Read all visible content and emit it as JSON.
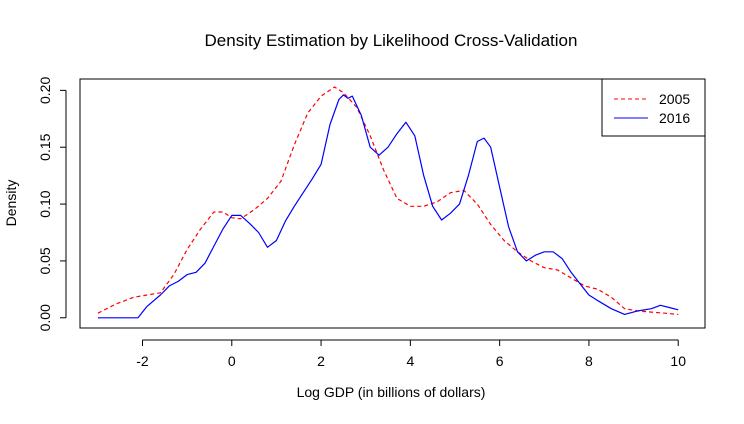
{
  "chart_data": {
    "type": "line",
    "title": "Density Estimation by Likelihood Cross-Validation",
    "xlabel": "Log GDP (in billions of dollars)",
    "ylabel": "Density",
    "xlim": [
      -3.4,
      10.6
    ],
    "ylim": [
      -0.009,
      0.21
    ],
    "x_ticks": [
      -2,
      0,
      2,
      4,
      6,
      8,
      10
    ],
    "y_ticks": [
      0.0,
      0.05,
      0.1,
      0.15,
      0.2
    ],
    "x_tick_labels": [
      "-2",
      "0",
      "2",
      "4",
      "6",
      "8",
      "10"
    ],
    "y_tick_labels": [
      "0.00",
      "0.05",
      "0.10",
      "0.15",
      "0.20"
    ],
    "grid": false,
    "legend_position": "top-right",
    "series": [
      {
        "name": "2005",
        "color": "#ff0000",
        "dash": "dashed",
        "x": [
          -3.0,
          -2.6,
          -2.2,
          -1.9,
          -1.6,
          -1.3,
          -1.0,
          -0.7,
          -0.4,
          -0.2,
          0.0,
          0.2,
          0.5,
          0.8,
          1.1,
          1.4,
          1.7,
          2.0,
          2.3,
          2.5,
          2.8,
          3.1,
          3.4,
          3.7,
          4.0,
          4.3,
          4.6,
          4.9,
          5.2,
          5.5,
          5.8,
          6.1,
          6.4,
          6.7,
          7.0,
          7.3,
          7.6,
          7.9,
          8.2,
          8.5,
          8.8,
          9.1,
          9.4,
          9.7,
          10.0
        ],
        "y": [
          0.004,
          0.012,
          0.018,
          0.02,
          0.022,
          0.038,
          0.06,
          0.078,
          0.093,
          0.093,
          0.088,
          0.087,
          0.095,
          0.105,
          0.12,
          0.152,
          0.18,
          0.195,
          0.203,
          0.198,
          0.185,
          0.16,
          0.13,
          0.105,
          0.098,
          0.098,
          0.102,
          0.11,
          0.112,
          0.1,
          0.082,
          0.068,
          0.058,
          0.05,
          0.044,
          0.042,
          0.035,
          0.028,
          0.025,
          0.018,
          0.008,
          0.006,
          0.005,
          0.004,
          0.003
        ]
      },
      {
        "name": "2016",
        "color": "#0000ff",
        "dash": "solid",
        "x": [
          -3.0,
          -2.5,
          -2.1,
          -1.9,
          -1.6,
          -1.4,
          -1.2,
          -1.0,
          -0.8,
          -0.6,
          -0.4,
          -0.2,
          0.0,
          0.2,
          0.4,
          0.6,
          0.8,
          1.0,
          1.2,
          1.4,
          1.6,
          1.8,
          2.0,
          2.2,
          2.4,
          2.5,
          2.6,
          2.7,
          2.9,
          3.1,
          3.3,
          3.5,
          3.7,
          3.9,
          4.1,
          4.3,
          4.5,
          4.7,
          4.9,
          5.1,
          5.3,
          5.5,
          5.65,
          5.8,
          6.0,
          6.2,
          6.4,
          6.6,
          6.8,
          7.0,
          7.2,
          7.4,
          7.6,
          7.8,
          8.0,
          8.2,
          8.5,
          8.8,
          9.1,
          9.4,
          9.6,
          9.8,
          10.0
        ],
        "y": [
          0.0,
          0.0,
          0.0,
          0.01,
          0.02,
          0.028,
          0.032,
          0.038,
          0.04,
          0.048,
          0.063,
          0.078,
          0.09,
          0.09,
          0.083,
          0.075,
          0.062,
          0.068,
          0.085,
          0.098,
          0.11,
          0.122,
          0.135,
          0.17,
          0.192,
          0.196,
          0.193,
          0.195,
          0.178,
          0.15,
          0.143,
          0.15,
          0.162,
          0.172,
          0.16,
          0.125,
          0.098,
          0.086,
          0.092,
          0.1,
          0.125,
          0.155,
          0.158,
          0.15,
          0.115,
          0.08,
          0.058,
          0.05,
          0.055,
          0.058,
          0.058,
          0.052,
          0.04,
          0.03,
          0.02,
          0.015,
          0.008,
          0.003,
          0.006,
          0.008,
          0.011,
          0.009,
          0.007
        ]
      }
    ]
  }
}
